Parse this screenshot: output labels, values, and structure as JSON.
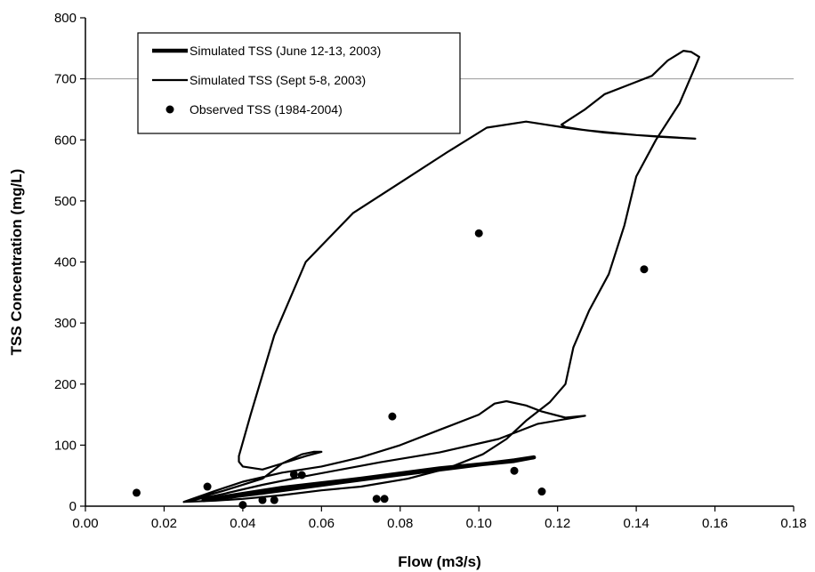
{
  "chart_data": {
    "type": "scatter",
    "title": "",
    "xlabel": "Flow (m3/s)",
    "ylabel": "TSS Concentration (mg/L)",
    "xlim": [
      0,
      0.18
    ],
    "ylim": [
      0,
      800
    ],
    "x_ticks": [
      "0.00",
      "0.02",
      "0.04",
      "0.06",
      "0.08",
      "0.10",
      "0.12",
      "0.14",
      "0.16",
      "0.18"
    ],
    "y_ticks": [
      "0",
      "100",
      "200",
      "300",
      "400",
      "500",
      "600",
      "700",
      "800"
    ],
    "gridlines_y": [
      700
    ],
    "legend_position": "top-left",
    "series": [
      {
        "name": "Simulated TSS (June 12-13, 2003)",
        "kind": "line",
        "line_weight": "thick",
        "color": "#000000",
        "points": [
          [
            0.03,
            10
          ],
          [
            0.045,
            22
          ],
          [
            0.06,
            35
          ],
          [
            0.08,
            52
          ],
          [
            0.1,
            68
          ],
          [
            0.109,
            75
          ],
          [
            0.114,
            80
          ],
          [
            0.109,
            74
          ],
          [
            0.09,
            62
          ],
          [
            0.07,
            45
          ],
          [
            0.05,
            30
          ],
          [
            0.035,
            15
          ],
          [
            0.03,
            10
          ]
        ]
      },
      {
        "name": "Simulated TSS (Sept 5-8, 2003)",
        "kind": "line",
        "line_weight": "medium",
        "color": "#000000",
        "points": [
          [
            0.025,
            7
          ],
          [
            0.033,
            25
          ],
          [
            0.04,
            40
          ],
          [
            0.05,
            55
          ],
          [
            0.06,
            65
          ],
          [
            0.07,
            80
          ],
          [
            0.08,
            100
          ],
          [
            0.09,
            125
          ],
          [
            0.1,
            150
          ],
          [
            0.104,
            168
          ],
          [
            0.107,
            172
          ],
          [
            0.112,
            165
          ],
          [
            0.116,
            155
          ],
          [
            0.122,
            145
          ],
          [
            0.127,
            148
          ],
          [
            0.115,
            135
          ],
          [
            0.105,
            110
          ],
          [
            0.09,
            88
          ],
          [
            0.075,
            72
          ],
          [
            0.065,
            60
          ],
          [
            0.055,
            48
          ],
          [
            0.045,
            35
          ],
          [
            0.035,
            20
          ],
          [
            0.025,
            7
          ],
          [
            0.035,
            25
          ],
          [
            0.045,
            45
          ],
          [
            0.05,
            70
          ],
          [
            0.056,
            82
          ],
          [
            0.06,
            89
          ],
          [
            0.058,
            89
          ],
          [
            0.055,
            85
          ],
          [
            0.05,
            70
          ],
          [
            0.045,
            60
          ],
          [
            0.04,
            65
          ],
          [
            0.039,
            73
          ],
          [
            0.039,
            82
          ],
          [
            0.042,
            150
          ],
          [
            0.048,
            280
          ],
          [
            0.056,
            400
          ],
          [
            0.068,
            480
          ],
          [
            0.08,
            530
          ],
          [
            0.092,
            580
          ],
          [
            0.102,
            620
          ],
          [
            0.112,
            630
          ],
          [
            0.122,
            620
          ],
          [
            0.132,
            612
          ],
          [
            0.14,
            608
          ],
          [
            0.146,
            605
          ],
          [
            0.155,
            602
          ],
          [
            0.14,
            608
          ],
          [
            0.127,
            616
          ],
          [
            0.122,
            621
          ],
          [
            0.121,
            625
          ],
          [
            0.127,
            650
          ],
          [
            0.132,
            675
          ],
          [
            0.138,
            690
          ],
          [
            0.144,
            705
          ],
          [
            0.148,
            730
          ],
          [
            0.152,
            746
          ],
          [
            0.154,
            744
          ],
          [
            0.156,
            736
          ],
          [
            0.155,
            720
          ],
          [
            0.151,
            660
          ],
          [
            0.145,
            600
          ],
          [
            0.14,
            540
          ],
          [
            0.137,
            460
          ],
          [
            0.133,
            380
          ],
          [
            0.128,
            320
          ],
          [
            0.124,
            260
          ],
          [
            0.122,
            200
          ],
          [
            0.118,
            170
          ],
          [
            0.112,
            140
          ],
          [
            0.107,
            110
          ],
          [
            0.101,
            85
          ],
          [
            0.092,
            62
          ],
          [
            0.082,
            45
          ],
          [
            0.07,
            32
          ],
          [
            0.06,
            26
          ],
          [
            0.05,
            18
          ],
          [
            0.04,
            12
          ],
          [
            0.033,
            9
          ],
          [
            0.025,
            7
          ]
        ]
      },
      {
        "name": "Observed TSS (1984-2004)",
        "kind": "points",
        "color": "#000000",
        "points": [
          [
            0.013,
            22
          ],
          [
            0.031,
            32
          ],
          [
            0.04,
            2
          ],
          [
            0.045,
            10
          ],
          [
            0.048,
            10
          ],
          [
            0.053,
            52
          ],
          [
            0.055,
            51
          ],
          [
            0.074,
            12
          ],
          [
            0.076,
            12
          ],
          [
            0.078,
            147
          ],
          [
            0.1,
            447
          ],
          [
            0.109,
            58
          ],
          [
            0.116,
            24
          ],
          [
            0.142,
            388
          ]
        ]
      }
    ]
  }
}
